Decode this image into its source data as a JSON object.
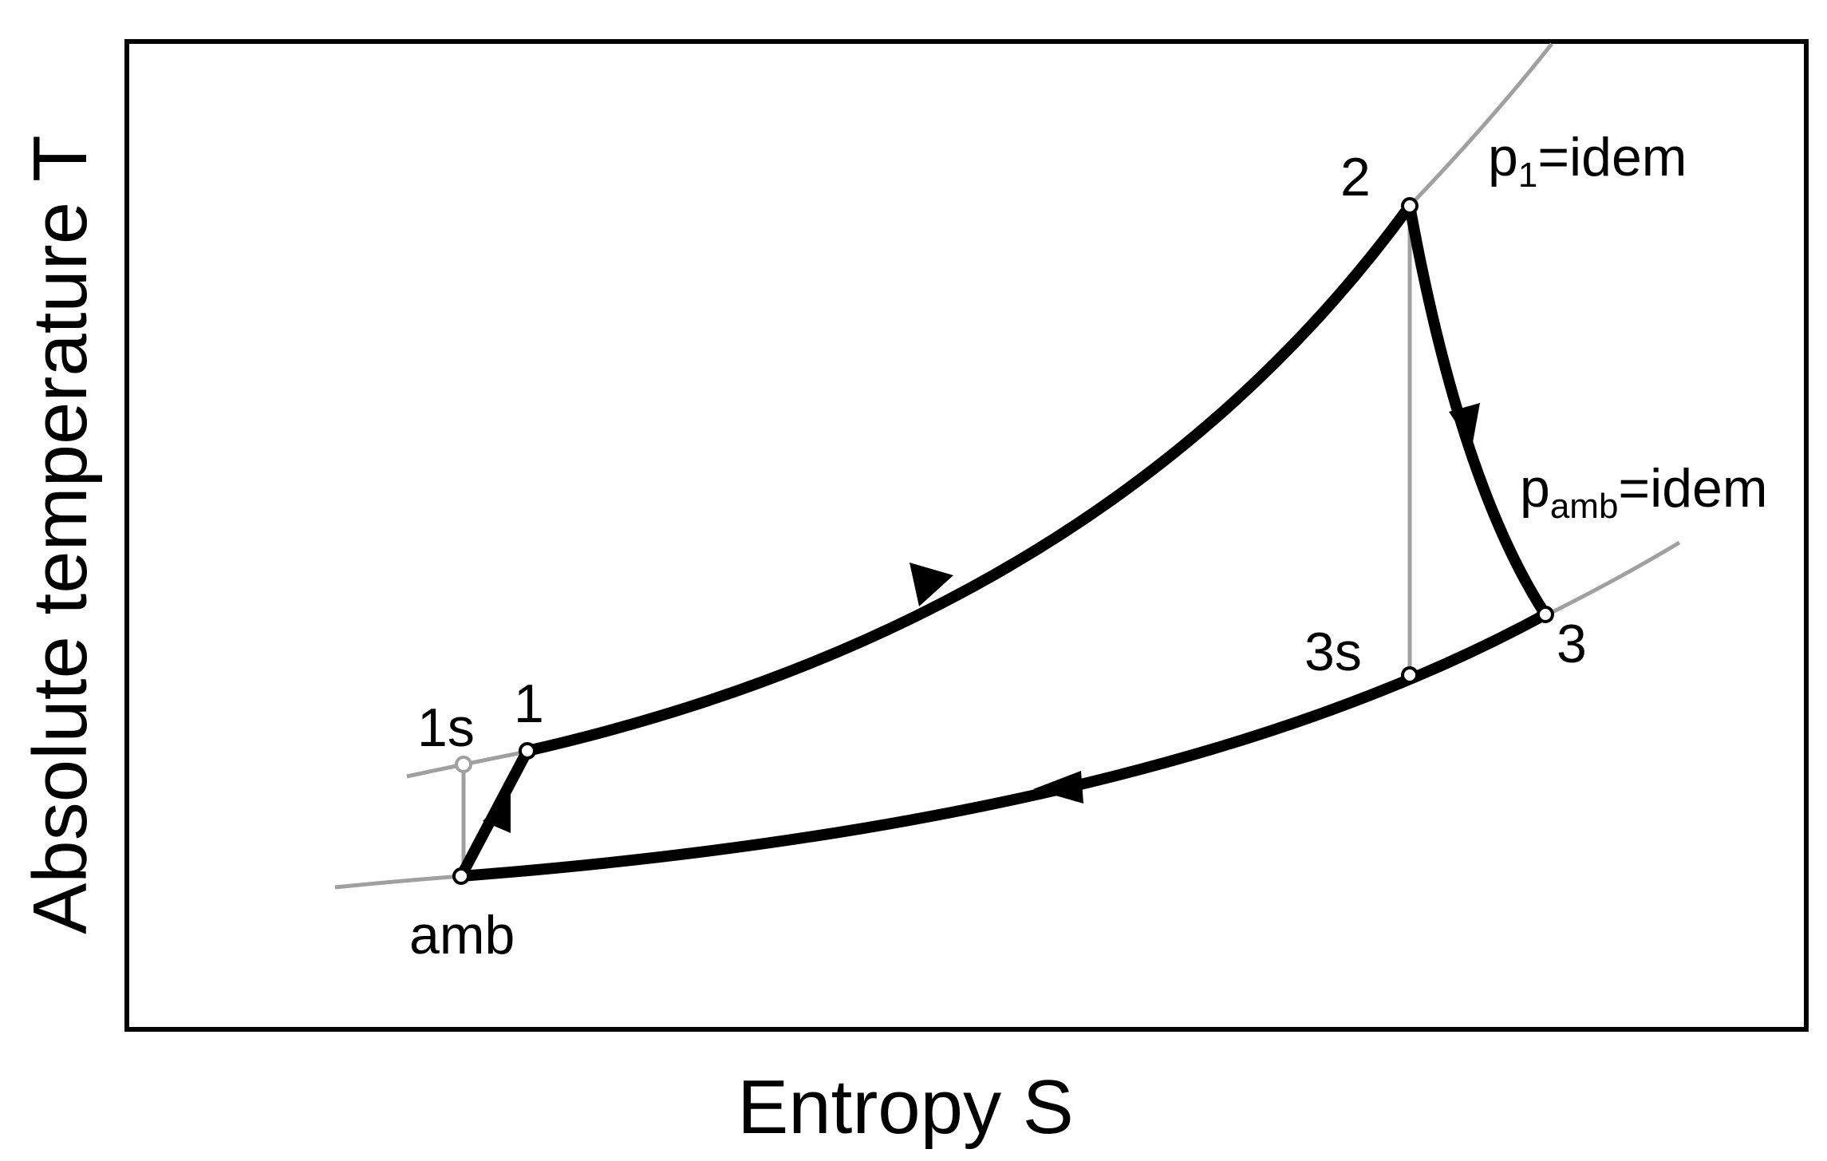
{
  "axes": {
    "x_label": "Entropy S",
    "y_label": "Absolute temperature T"
  },
  "points": {
    "amb": "amb",
    "p1": "1",
    "p1s": "1s",
    "p2": "2",
    "p3": "3",
    "p3s": "3s"
  },
  "isobars": {
    "p1_base": "p",
    "p1_sub": "1",
    "p1_suffix": "=idem",
    "pamb_base": "p",
    "pamb_sub": "amb",
    "pamb_suffix": "=idem"
  },
  "colors": {
    "process": "#000000",
    "isobar": "#a0a0a0",
    "frame": "#000000",
    "background": "#ffffff"
  }
}
